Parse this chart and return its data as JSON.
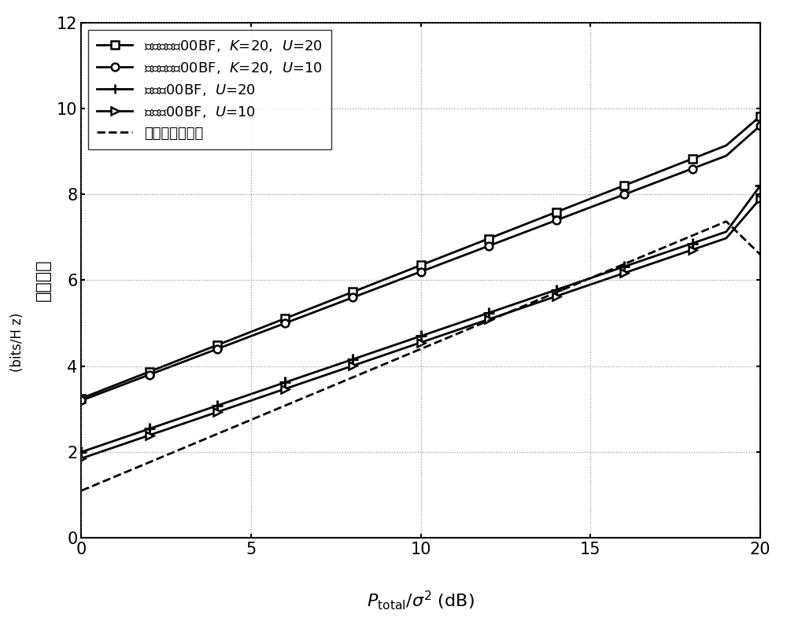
{
  "xmin": 0,
  "xmax": 20,
  "ymin": 0,
  "ymax": 12,
  "xticks": [
    0,
    5,
    10,
    15,
    20
  ],
  "yticks": [
    0,
    2,
    4,
    6,
    8,
    10,
    12
  ],
  "x": [
    0,
    1,
    2,
    3,
    4,
    5,
    6,
    7,
    8,
    9,
    10,
    11,
    12,
    13,
    14,
    15,
    16,
    17,
    18,
    19,
    20
  ],
  "line1_y": [
    3.25,
    3.56,
    3.87,
    4.18,
    4.49,
    4.8,
    5.11,
    5.42,
    5.73,
    6.04,
    6.35,
    6.66,
    6.97,
    7.28,
    7.59,
    7.9,
    8.21,
    8.52,
    8.83,
    9.14,
    9.82
  ],
  "line2_y": [
    3.2,
    3.5,
    3.8,
    4.1,
    4.4,
    4.7,
    5.0,
    5.3,
    5.6,
    5.9,
    6.2,
    6.5,
    6.8,
    7.1,
    7.4,
    7.7,
    8.0,
    8.3,
    8.6,
    8.9,
    9.6
  ],
  "line3_y": [
    2.0,
    2.27,
    2.54,
    2.81,
    3.08,
    3.35,
    3.62,
    3.89,
    4.16,
    4.43,
    4.7,
    4.97,
    5.24,
    5.51,
    5.78,
    6.05,
    6.32,
    6.59,
    6.86,
    7.13,
    8.2
  ],
  "line4_y": [
    1.85,
    2.12,
    2.39,
    2.66,
    2.93,
    3.2,
    3.47,
    3.74,
    4.01,
    4.28,
    4.55,
    4.82,
    5.09,
    5.36,
    5.63,
    5.9,
    6.17,
    6.44,
    6.71,
    6.98,
    7.9
  ],
  "line5_y": [
    1.1,
    1.43,
    1.76,
    2.09,
    2.42,
    2.75,
    3.08,
    3.41,
    3.74,
    4.07,
    4.4,
    4.73,
    5.06,
    5.39,
    5.72,
    6.05,
    6.38,
    6.71,
    7.04,
    7.37,
    6.6
  ],
  "marker_interval": 2,
  "color": "#000000"
}
